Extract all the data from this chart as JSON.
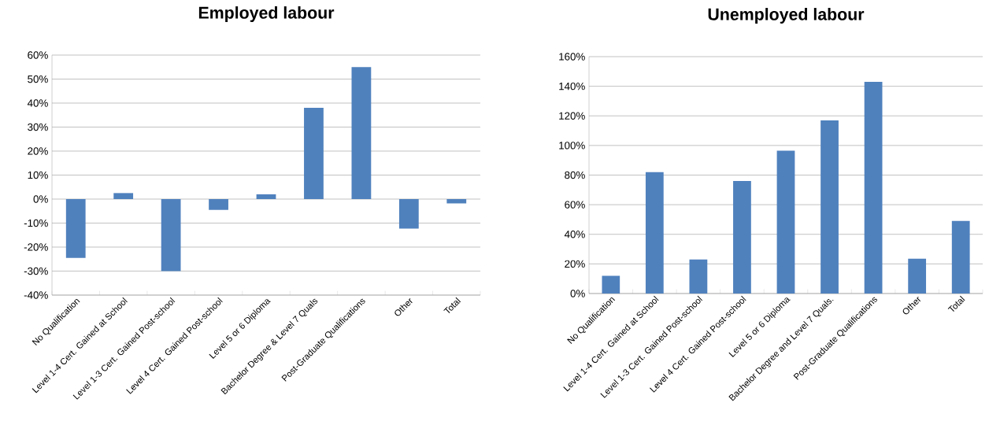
{
  "chart_data": [
    {
      "type": "bar",
      "title": "Employed labour",
      "categories": [
        "No Qualification",
        "Level 1-4 Cert. Gained at School",
        "Level 1-3 Cert. Gained Post-school",
        "Level 4 Cert. Gained Post-school",
        "Level 5 or 6 Diploma",
        "Bachelor Degree & Level 7 Quals",
        "Post-Graduate Qualifications",
        "Other",
        "Total"
      ],
      "values": [
        -24.5,
        2.5,
        -30,
        -4.5,
        2,
        38,
        55,
        -12.3,
        -1.8
      ],
      "color": "#4f81bd",
      "ylim": [
        -40,
        60
      ],
      "yticks": [
        {
          "value": -40,
          "label": "-40%"
        },
        {
          "value": -30,
          "label": "-30%"
        },
        {
          "value": -20,
          "label": "-20%"
        },
        {
          "value": -10,
          "label": "-10%"
        },
        {
          "value": 0,
          "label": "0%"
        },
        {
          "value": 10,
          "label": "10%"
        },
        {
          "value": 20,
          "label": "20%"
        },
        {
          "value": 30,
          "label": "30%"
        },
        {
          "value": 40,
          "label": "40%"
        },
        {
          "value": 50,
          "label": "50%"
        },
        {
          "value": 60,
          "label": "60%"
        }
      ],
      "grid": "y"
    },
    {
      "type": "bar",
      "title": "Unemployed labour",
      "categories": [
        "No Qualification",
        "Level 1-4 Cert. Gained at School",
        "Level 1-3 Cert. Gained Post-school",
        "Level 4 Cert. Gained Post-school",
        "Level 5 or 6 Diploma",
        "Bachelor Degree and Level 7 Quals.",
        "Post-Graduate Qualifications",
        "Other",
        "Total"
      ],
      "values": [
        12,
        82,
        23,
        76,
        96.5,
        117,
        143,
        23.5,
        49
      ],
      "color": "#4f81bd",
      "ylim": [
        0,
        160
      ],
      "yticks": [
        {
          "value": 0,
          "label": "0%"
        },
        {
          "value": 20,
          "label": "20%"
        },
        {
          "value": 40,
          "label": "40%"
        },
        {
          "value": 60,
          "label": "60%"
        },
        {
          "value": 80,
          "label": "80%"
        },
        {
          "value": 100,
          "label": "100%"
        },
        {
          "value": 120,
          "label": "120%"
        },
        {
          "value": 140,
          "label": "140%"
        },
        {
          "value": 160,
          "label": "160%"
        }
      ],
      "grid": "y"
    }
  ]
}
